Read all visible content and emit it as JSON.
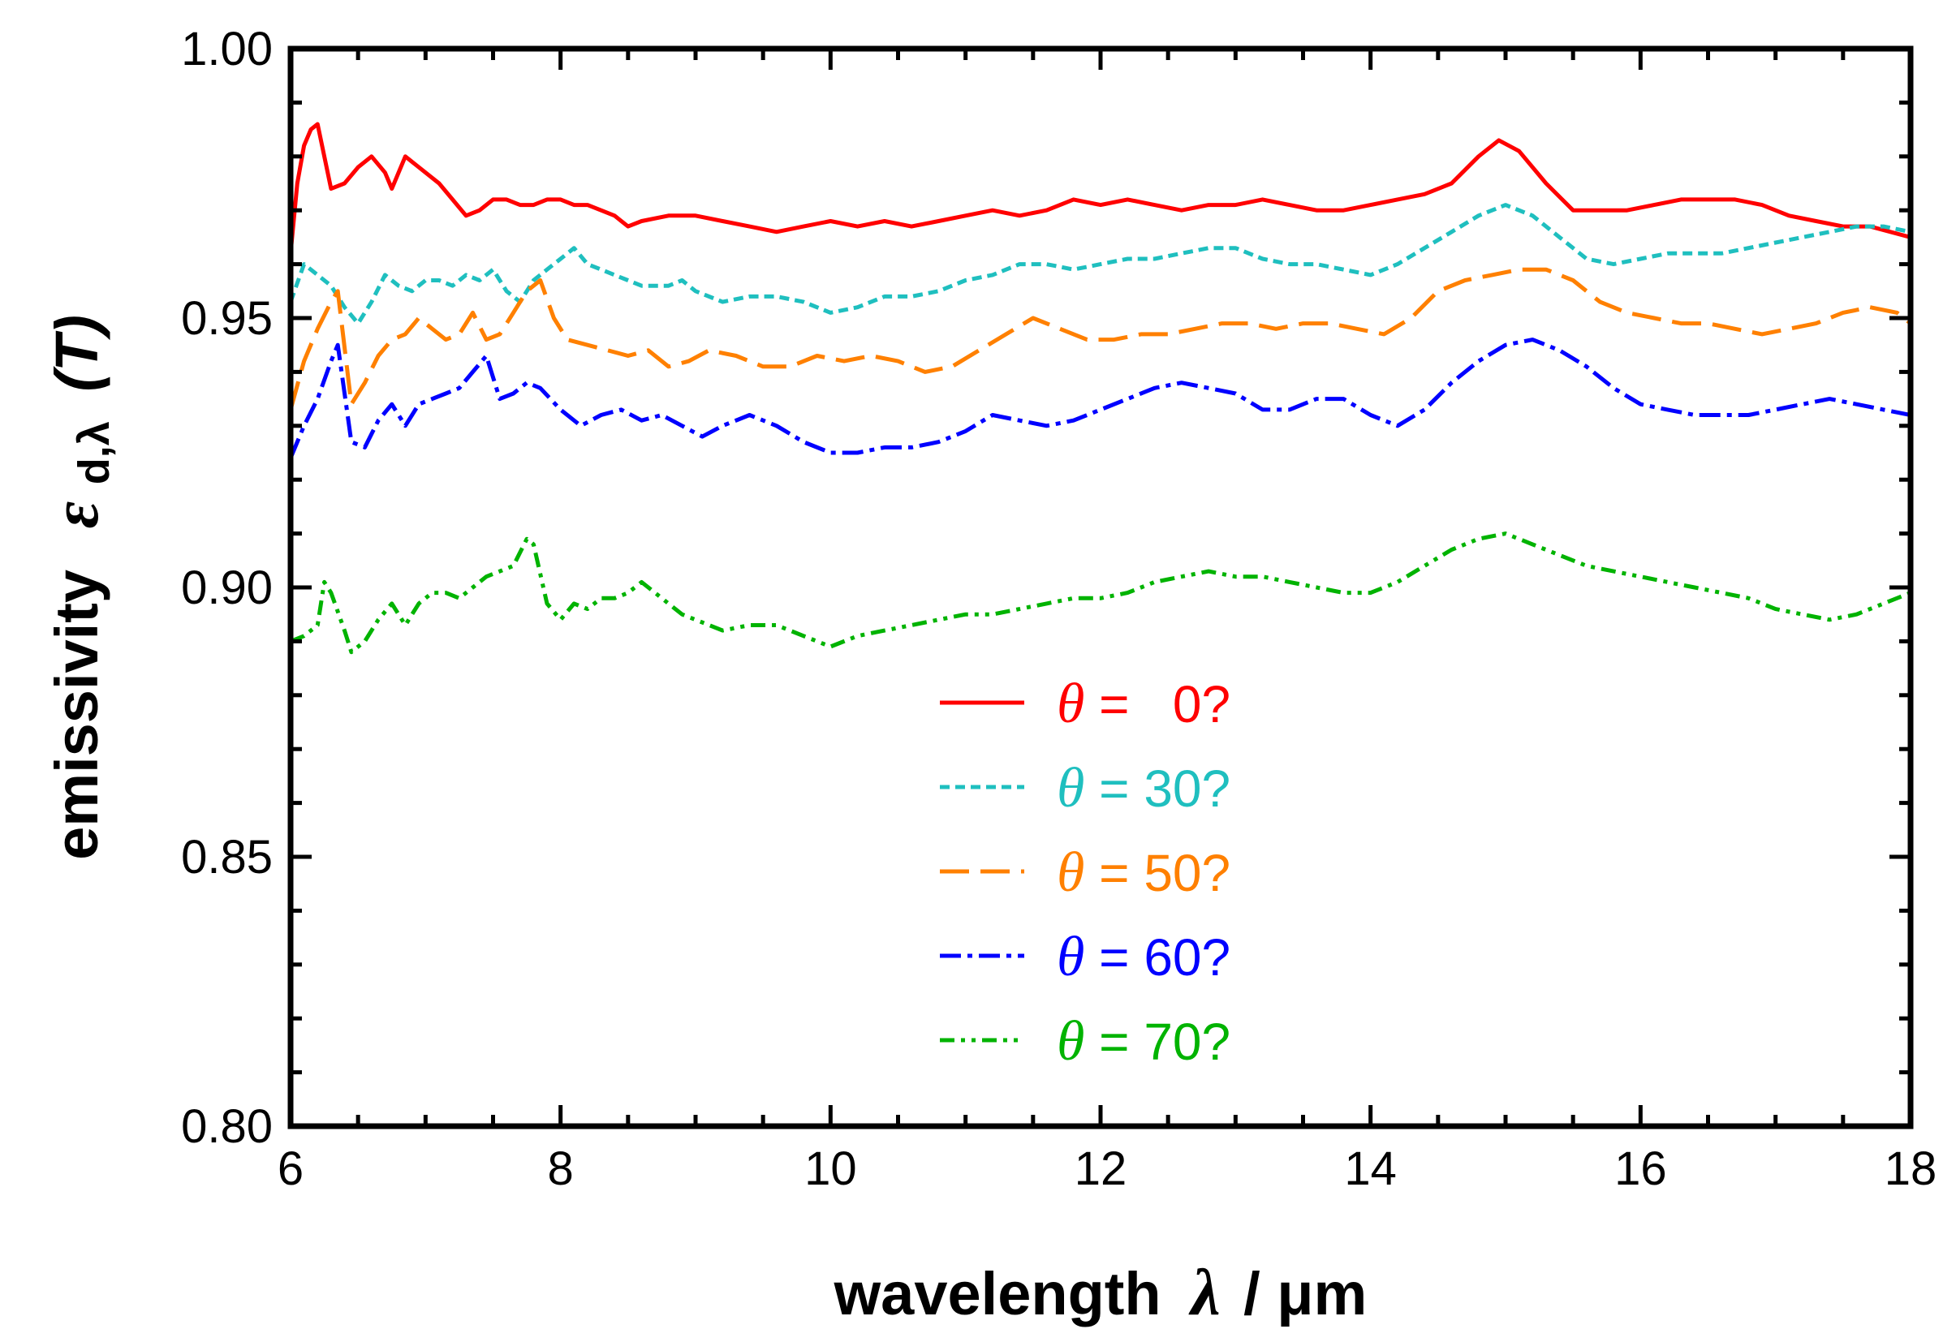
{
  "chart_data": {
    "type": "line",
    "xlabel": {
      "main": "wavelength",
      "symbol": "λ",
      "unit": " / μm"
    },
    "ylabel": {
      "main": "emissivity",
      "symbol": "ε",
      "sub": "d,λ",
      "arg": "(T)"
    },
    "xlim": [
      6,
      18
    ],
    "ylim": [
      0.8,
      1.0
    ],
    "x_ticks": [
      6,
      8,
      10,
      12,
      14,
      16,
      18
    ],
    "x_tick_labels": [
      "6",
      "8",
      "10",
      "12",
      "14",
      "16",
      "18"
    ],
    "y_ticks": [
      0.8,
      0.85,
      0.9,
      0.95,
      1.0
    ],
    "y_tick_labels": [
      "0.80",
      "0.85",
      "0.90",
      "0.95",
      "1.00"
    ],
    "grid": false,
    "legend_position": "center-lower",
    "series": [
      {
        "name": "θ = 0?",
        "legend_symbol": "θ",
        "legend_value": " =   0?",
        "color": "#ff0000",
        "dash": "solid",
        "x": [
          6.0,
          6.05,
          6.1,
          6.15,
          6.2,
          6.3,
          6.4,
          6.5,
          6.6,
          6.7,
          6.75,
          6.85,
          6.95,
          7.1,
          7.2,
          7.3,
          7.4,
          7.5,
          7.6,
          7.7,
          7.8,
          7.9,
          8.0,
          8.1,
          8.2,
          8.3,
          8.4,
          8.5,
          8.6,
          8.8,
          9.0,
          9.2,
          9.4,
          9.6,
          9.8,
          10.0,
          10.2,
          10.4,
          10.6,
          10.8,
          11.0,
          11.2,
          11.4,
          11.6,
          11.8,
          12.0,
          12.2,
          12.4,
          12.6,
          12.8,
          13.0,
          13.2,
          13.4,
          13.6,
          13.8,
          14.0,
          14.2,
          14.4,
          14.6,
          14.8,
          14.95,
          15.1,
          15.3,
          15.5,
          15.7,
          15.9,
          16.1,
          16.3,
          16.5,
          16.7,
          16.9,
          17.1,
          17.3,
          17.5,
          17.7,
          18.0
        ],
        "y": [
          0.962,
          0.975,
          0.982,
          0.985,
          0.986,
          0.974,
          0.975,
          0.978,
          0.98,
          0.977,
          0.974,
          0.98,
          0.978,
          0.975,
          0.972,
          0.969,
          0.97,
          0.972,
          0.972,
          0.971,
          0.971,
          0.972,
          0.972,
          0.971,
          0.971,
          0.97,
          0.969,
          0.967,
          0.968,
          0.969,
          0.969,
          0.968,
          0.967,
          0.966,
          0.967,
          0.968,
          0.967,
          0.968,
          0.967,
          0.968,
          0.969,
          0.97,
          0.969,
          0.97,
          0.972,
          0.971,
          0.972,
          0.971,
          0.97,
          0.971,
          0.971,
          0.972,
          0.971,
          0.97,
          0.97,
          0.971,
          0.972,
          0.973,
          0.975,
          0.98,
          0.983,
          0.981,
          0.975,
          0.97,
          0.97,
          0.97,
          0.971,
          0.972,
          0.972,
          0.972,
          0.971,
          0.969,
          0.968,
          0.967,
          0.967,
          0.965
        ]
      },
      {
        "name": "θ = 30?",
        "legend_symbol": "θ",
        "legend_value": " = 30?",
        "color": "#1fbfbf",
        "dash": "12,7",
        "x": [
          6.0,
          6.1,
          6.2,
          6.3,
          6.4,
          6.5,
          6.6,
          6.7,
          6.8,
          6.9,
          7.0,
          7.1,
          7.2,
          7.3,
          7.4,
          7.5,
          7.6,
          7.7,
          7.8,
          7.9,
          8.0,
          8.1,
          8.2,
          8.3,
          8.4,
          8.5,
          8.6,
          8.7,
          8.8,
          8.9,
          9.0,
          9.2,
          9.4,
          9.6,
          9.8,
          10.0,
          10.2,
          10.4,
          10.6,
          10.8,
          11.0,
          11.2,
          11.4,
          11.6,
          11.8,
          12.0,
          12.2,
          12.4,
          12.6,
          12.8,
          13.0,
          13.2,
          13.4,
          13.6,
          13.8,
          14.0,
          14.2,
          14.4,
          14.6,
          14.8,
          15.0,
          15.2,
          15.4,
          15.6,
          15.8,
          16.0,
          16.2,
          16.4,
          16.6,
          16.8,
          17.0,
          17.2,
          17.4,
          17.6,
          17.8,
          18.0
        ],
        "y": [
          0.953,
          0.96,
          0.958,
          0.956,
          0.952,
          0.949,
          0.953,
          0.958,
          0.956,
          0.955,
          0.957,
          0.957,
          0.956,
          0.958,
          0.957,
          0.959,
          0.955,
          0.953,
          0.957,
          0.959,
          0.961,
          0.963,
          0.96,
          0.959,
          0.958,
          0.957,
          0.956,
          0.956,
          0.956,
          0.957,
          0.955,
          0.953,
          0.954,
          0.954,
          0.953,
          0.951,
          0.952,
          0.954,
          0.954,
          0.955,
          0.957,
          0.958,
          0.96,
          0.96,
          0.959,
          0.96,
          0.961,
          0.961,
          0.962,
          0.963,
          0.963,
          0.961,
          0.96,
          0.96,
          0.959,
          0.958,
          0.96,
          0.963,
          0.966,
          0.969,
          0.971,
          0.969,
          0.965,
          0.961,
          0.96,
          0.961,
          0.962,
          0.962,
          0.962,
          0.963,
          0.964,
          0.965,
          0.966,
          0.967,
          0.967,
          0.966
        ]
      },
      {
        "name": "θ = 50?",
        "legend_symbol": "θ",
        "legend_value": " = 50?",
        "color": "#ff8000",
        "dash": "36,14",
        "x": [
          6.0,
          6.1,
          6.2,
          6.3,
          6.35,
          6.45,
          6.55,
          6.65,
          6.75,
          6.85,
          6.95,
          7.05,
          7.15,
          7.25,
          7.35,
          7.45,
          7.55,
          7.65,
          7.75,
          7.85,
          7.95,
          8.05,
          8.2,
          8.35,
          8.5,
          8.65,
          8.8,
          8.95,
          9.1,
          9.3,
          9.5,
          9.7,
          9.9,
          10.1,
          10.3,
          10.5,
          10.7,
          10.9,
          11.1,
          11.3,
          11.5,
          11.7,
          11.9,
          12.1,
          12.3,
          12.5,
          12.7,
          12.9,
          13.1,
          13.3,
          13.5,
          13.7,
          13.9,
          14.1,
          14.3,
          14.5,
          14.7,
          14.9,
          15.1,
          15.3,
          15.5,
          15.7,
          15.9,
          16.1,
          16.3,
          16.5,
          16.7,
          16.9,
          17.1,
          17.3,
          17.5,
          17.7,
          17.9,
          18.0
        ],
        "y": [
          0.933,
          0.942,
          0.948,
          0.953,
          0.955,
          0.934,
          0.938,
          0.943,
          0.946,
          0.947,
          0.95,
          0.948,
          0.946,
          0.947,
          0.951,
          0.946,
          0.947,
          0.951,
          0.955,
          0.957,
          0.95,
          0.946,
          0.945,
          0.944,
          0.943,
          0.944,
          0.941,
          0.942,
          0.944,
          0.943,
          0.941,
          0.941,
          0.943,
          0.942,
          0.943,
          0.942,
          0.94,
          0.941,
          0.944,
          0.947,
          0.95,
          0.948,
          0.946,
          0.946,
          0.947,
          0.947,
          0.948,
          0.949,
          0.949,
          0.948,
          0.949,
          0.949,
          0.948,
          0.947,
          0.95,
          0.955,
          0.957,
          0.958,
          0.959,
          0.959,
          0.957,
          0.953,
          0.951,
          0.95,
          0.949,
          0.949,
          0.948,
          0.947,
          0.948,
          0.949,
          0.951,
          0.952,
          0.951,
          0.949
        ]
      },
      {
        "name": "θ = 60?",
        "legend_symbol": "θ",
        "legend_value": " = 60?",
        "color": "#0000ff",
        "dash": "26,8,6,8",
        "x": [
          6.0,
          6.1,
          6.2,
          6.3,
          6.35,
          6.45,
          6.55,
          6.65,
          6.75,
          6.85,
          6.95,
          7.05,
          7.15,
          7.25,
          7.35,
          7.45,
          7.55,
          7.65,
          7.75,
          7.85,
          8.0,
          8.15,
          8.3,
          8.45,
          8.6,
          8.75,
          8.9,
          9.05,
          9.2,
          9.4,
          9.6,
          9.8,
          10.0,
          10.2,
          10.4,
          10.6,
          10.8,
          11.0,
          11.2,
          11.4,
          11.6,
          11.8,
          12.0,
          12.2,
          12.4,
          12.6,
          12.8,
          13.0,
          13.2,
          13.4,
          13.6,
          13.8,
          14.0,
          14.2,
          14.4,
          14.6,
          14.8,
          15.0,
          15.2,
          15.4,
          15.6,
          15.8,
          16.0,
          16.2,
          16.4,
          16.6,
          16.8,
          17.0,
          17.2,
          17.4,
          17.6,
          17.8,
          18.0
        ],
        "y": [
          0.924,
          0.93,
          0.935,
          0.942,
          0.945,
          0.927,
          0.926,
          0.931,
          0.934,
          0.93,
          0.934,
          0.935,
          0.936,
          0.937,
          0.94,
          0.943,
          0.935,
          0.936,
          0.938,
          0.937,
          0.933,
          0.93,
          0.932,
          0.933,
          0.931,
          0.932,
          0.93,
          0.928,
          0.93,
          0.932,
          0.93,
          0.927,
          0.925,
          0.925,
          0.926,
          0.926,
          0.927,
          0.929,
          0.932,
          0.931,
          0.93,
          0.931,
          0.933,
          0.935,
          0.937,
          0.938,
          0.937,
          0.936,
          0.933,
          0.933,
          0.935,
          0.935,
          0.932,
          0.93,
          0.933,
          0.938,
          0.942,
          0.945,
          0.946,
          0.944,
          0.941,
          0.937,
          0.934,
          0.933,
          0.932,
          0.932,
          0.932,
          0.933,
          0.934,
          0.935,
          0.934,
          0.933,
          0.932
        ]
      },
      {
        "name": "θ = 70?",
        "legend_symbol": "θ",
        "legend_value": " = 70?",
        "color": "#00b300",
        "dash": "18,8,5,8,5,8",
        "x": [
          6.0,
          6.1,
          6.2,
          6.25,
          6.3,
          6.4,
          6.45,
          6.55,
          6.65,
          6.75,
          6.85,
          6.95,
          7.05,
          7.15,
          7.25,
          7.35,
          7.45,
          7.55,
          7.65,
          7.75,
          7.8,
          7.9,
          8.0,
          8.1,
          8.2,
          8.3,
          8.4,
          8.5,
          8.6,
          8.7,
          8.8,
          8.9,
          9.0,
          9.2,
          9.4,
          9.6,
          9.8,
          10.0,
          10.2,
          10.4,
          10.6,
          10.8,
          11.0,
          11.2,
          11.4,
          11.6,
          11.8,
          12.0,
          12.2,
          12.4,
          12.6,
          12.8,
          13.0,
          13.2,
          13.4,
          13.6,
          13.8,
          14.0,
          14.2,
          14.4,
          14.6,
          14.8,
          15.0,
          15.2,
          15.4,
          15.6,
          15.8,
          16.0,
          16.2,
          16.4,
          16.6,
          16.8,
          17.0,
          17.2,
          17.4,
          17.6,
          17.8,
          18.0
        ],
        "y": [
          0.89,
          0.891,
          0.893,
          0.901,
          0.899,
          0.892,
          0.888,
          0.89,
          0.894,
          0.897,
          0.893,
          0.897,
          0.899,
          0.899,
          0.898,
          0.9,
          0.902,
          0.903,
          0.904,
          0.909,
          0.908,
          0.897,
          0.894,
          0.897,
          0.896,
          0.898,
          0.898,
          0.899,
          0.901,
          0.899,
          0.897,
          0.895,
          0.894,
          0.892,
          0.893,
          0.893,
          0.891,
          0.889,
          0.891,
          0.892,
          0.893,
          0.894,
          0.895,
          0.895,
          0.896,
          0.897,
          0.898,
          0.898,
          0.899,
          0.901,
          0.902,
          0.903,
          0.902,
          0.902,
          0.901,
          0.9,
          0.899,
          0.899,
          0.901,
          0.904,
          0.907,
          0.909,
          0.91,
          0.908,
          0.906,
          0.904,
          0.903,
          0.902,
          0.901,
          0.9,
          0.899,
          0.898,
          0.896,
          0.895,
          0.894,
          0.895,
          0.897,
          0.899
        ]
      }
    ]
  }
}
